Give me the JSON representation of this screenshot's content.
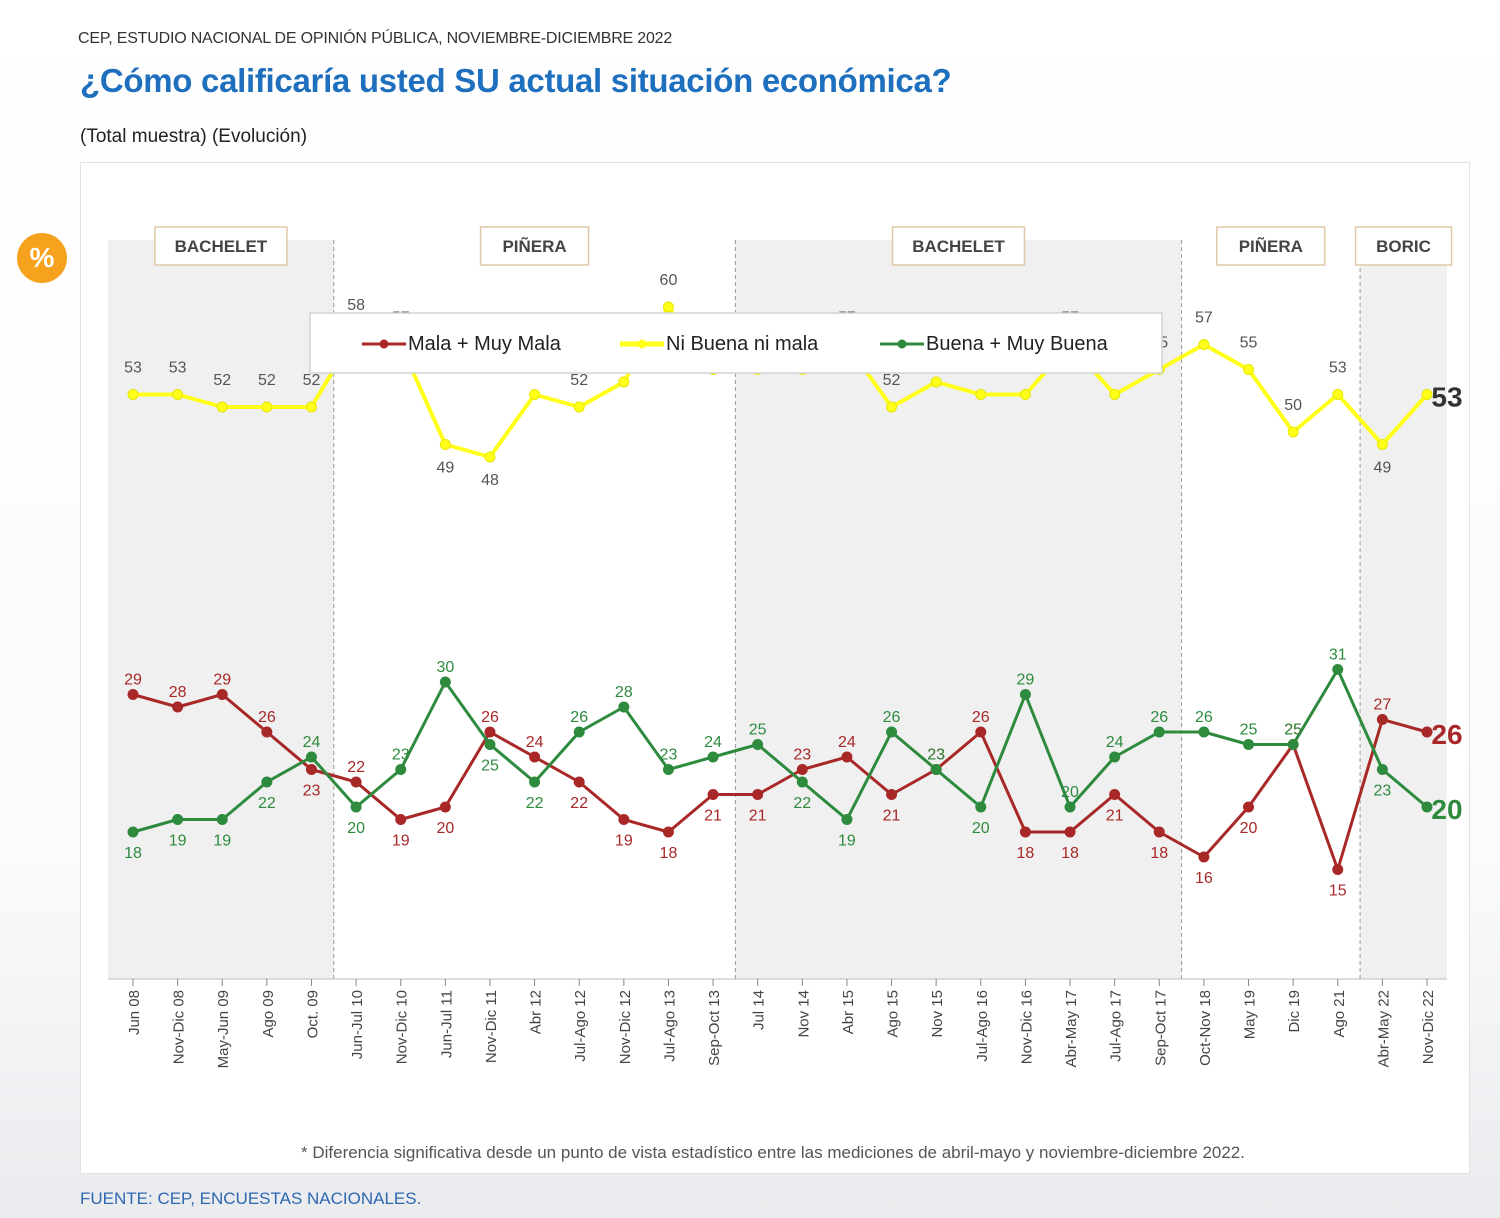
{
  "header": {
    "source_line": "CEP, ESTUDIO NACIONAL DE OPINIÓN PÚBLICA, NOVIEMBRE-DICIEMBRE 2022",
    "title": "¿Cómo calificaría usted SU actual situación económica?",
    "subtitle": "(Total muestra) (Evolución)",
    "badge": "%"
  },
  "footer": {
    "source": "FUENTE: CEP, ENCUESTAS NACIONALES."
  },
  "chart_data": {
    "type": "line",
    "categories": [
      "Jun 08",
      "Nov-Dic 08",
      "May-Jun 09",
      "Ago 09",
      "Oct. 09",
      "Jun-Jul 10",
      "Nov-Dic 10",
      "Jun-Jul 11",
      "Nov-Dic 11",
      "Abr 12",
      "Jul-Ago 12",
      "Nov-Dic 12",
      "Jul-Ago 13",
      "Sep-Oct 13",
      "Jul 14",
      "Nov 14",
      "Abr 15",
      "Ago 15",
      "Nov 15",
      "Jul-Ago 16",
      "Nov-Dic 16",
      "Abr-May 17",
      "Jul-Ago 17",
      "Sep-Oct 17",
      "Oct-Nov 18",
      "May 19",
      "Dic 19",
      "Ago 21",
      "Abr-May 22",
      "Nov-Dic 22"
    ],
    "series": [
      {
        "name": "Mala + Muy Mala",
        "color": "#a82828",
        "values": [
          29,
          28,
          29,
          26,
          23,
          22,
          19,
          20,
          26,
          24,
          22,
          19,
          18,
          21,
          21,
          23,
          24,
          21,
          23,
          26,
          18,
          18,
          21,
          18,
          16,
          20,
          25,
          15,
          27,
          26
        ]
      },
      {
        "name": "Ni Buena ni mala",
        "color": "#ffff1a",
        "values": [
          53,
          53,
          52,
          52,
          52,
          58,
          57,
          49,
          48,
          53,
          52,
          54,
          60,
          55,
          55,
          55,
          57,
          52,
          54,
          53,
          53,
          57,
          53,
          55,
          57,
          55,
          50,
          53,
          49,
          53
        ]
      },
      {
        "name": "Buena + Muy Buena",
        "color": "#2e8b3e",
        "values": [
          18,
          19,
          19,
          22,
          24,
          20,
          23,
          30,
          25,
          22,
          26,
          28,
          23,
          24,
          25,
          22,
          19,
          26,
          23,
          20,
          29,
          20,
          24,
          26,
          26,
          25,
          25,
          31,
          23,
          20
        ]
      }
    ],
    "ylim": [
      0,
      70
    ],
    "grid": false,
    "legend_position": "top-center",
    "periods": [
      {
        "label": "BACHELET",
        "start": "Jun 08",
        "end": "Oct. 09",
        "shaded": true
      },
      {
        "label": "PIÑERA",
        "start": "Jun-Jul 10",
        "end": "Sep-Oct 13",
        "shaded": false
      },
      {
        "label": "BACHELET",
        "start": "Jul 14",
        "end": "Sep-Oct 17",
        "shaded": true
      },
      {
        "label": "PIÑERA",
        "start": "Oct-Nov 18",
        "end": "Ago 21",
        "shaded": false
      },
      {
        "label": "BORIC",
        "start": "Abr-May 22",
        "end": "Nov-Dic 22",
        "shaded": true
      }
    ],
    "final_labels": [
      "26",
      "53",
      "20"
    ],
    "note": "* Diferencia significativa desde un punto de vista estadístico entre las mediciones de abril-mayo y noviembre-diciembre 2022."
  }
}
